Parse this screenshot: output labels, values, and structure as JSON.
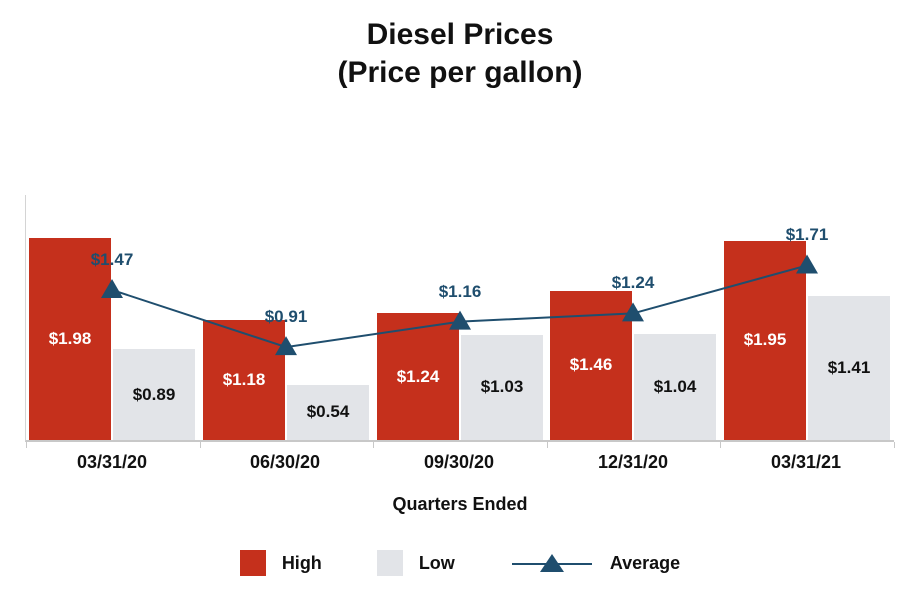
{
  "title": {
    "line1": "Diesel Prices",
    "line2": "(Price per gallon)"
  },
  "chart_data": {
    "type": "bar",
    "title": "Diesel Prices (Price per gallon)",
    "categories": [
      "03/31/20",
      "06/30/20",
      "09/30/20",
      "12/31/20",
      "03/31/21"
    ],
    "series": [
      {
        "name": "High",
        "type": "bar",
        "color": "#C5301C",
        "values": [
          1.98,
          1.18,
          1.24,
          1.46,
          1.95
        ],
        "labels": [
          "$1.98",
          "$1.18",
          "$1.24",
          "$1.46",
          "$1.95"
        ]
      },
      {
        "name": "Low",
        "type": "bar",
        "color": "#E2E4E8",
        "values": [
          0.89,
          0.54,
          1.03,
          1.04,
          1.41
        ],
        "labels": [
          "$0.89",
          "$0.54",
          "$1.03",
          "$1.04",
          "$1.41"
        ]
      },
      {
        "name": "Average",
        "type": "line",
        "marker": "triangle-up",
        "color": "#1F4E6E",
        "values": [
          1.47,
          0.91,
          1.16,
          1.24,
          1.71
        ],
        "labels": [
          "$1.47",
          "$0.91",
          "$1.16",
          "$1.24",
          "$1.71"
        ]
      }
    ],
    "xlabel": "Quarters Ended",
    "ylabel": "",
    "ylim": [
      0,
      2.4
    ],
    "grid": false,
    "legend_position": "bottom"
  }
}
